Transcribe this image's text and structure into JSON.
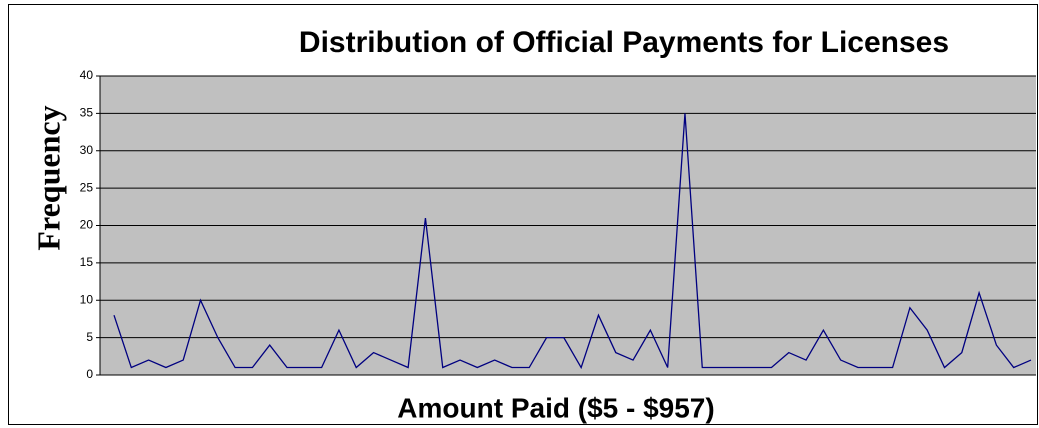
{
  "chart_data": {
    "type": "line",
    "title": "Distribution of Official Payments for Licenses",
    "x_label": "Amount Paid ($5 - $957)",
    "y_label": "Frequency",
    "categories": [
      null,
      null,
      null,
      null,
      null,
      null,
      null,
      null,
      null,
      null,
      null,
      null,
      null,
      null,
      null,
      null,
      null,
      null,
      null,
      null,
      null,
      null,
      null,
      null,
      null,
      null,
      null,
      null,
      null,
      null,
      null,
      null,
      null,
      null,
      null,
      null,
      null,
      null,
      null,
      null,
      null,
      null,
      null,
      null,
      null,
      null,
      null,
      null,
      null,
      null,
      null,
      null,
      null,
      null
    ],
    "series": [
      {
        "name": "Frequency",
        "color": "#000080",
        "values": [
          8,
          1,
          2,
          1,
          2,
          10,
          5,
          1,
          1,
          4,
          1,
          1,
          1,
          6,
          1,
          3,
          2,
          1,
          21,
          1,
          2,
          1,
          2,
          1,
          1,
          5,
          5,
          1,
          8,
          3,
          2,
          6,
          1,
          35,
          1,
          1,
          1,
          1,
          1,
          3,
          2,
          6,
          2,
          1,
          1,
          1,
          9,
          6,
          1,
          3,
          11,
          4,
          1,
          2
        ]
      }
    ],
    "ylim": [
      0,
      40
    ],
    "yticks": [
      0,
      5,
      10,
      15,
      20,
      25,
      30,
      35,
      40
    ],
    "grid": true,
    "plot_background": "#c0c0c0"
  }
}
